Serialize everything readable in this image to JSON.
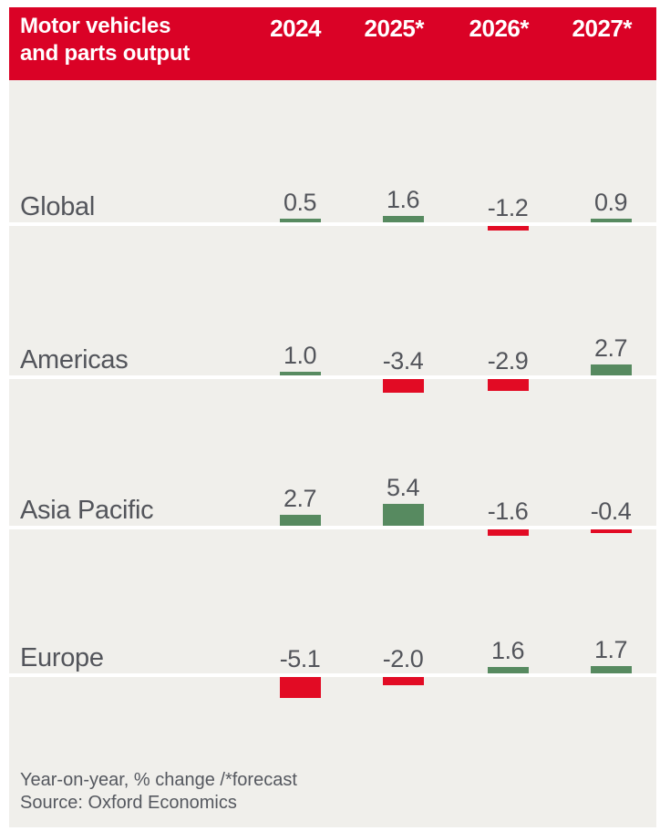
{
  "header": {
    "title_line1": "Motor vehicles",
    "title_line2": "and parts output",
    "columns": [
      "2024",
      "2025*",
      "2026*",
      "2027*"
    ]
  },
  "chart_data": {
    "type": "bar",
    "title": "Motor vehicles and parts output",
    "categories": [
      "2024",
      "2025*",
      "2026*",
      "2027*"
    ],
    "series": [
      {
        "name": "Global",
        "values": [
          0.5,
          1.6,
          -1.2,
          0.9
        ]
      },
      {
        "name": "Americas",
        "values": [
          1.0,
          -3.4,
          -2.9,
          2.7
        ]
      },
      {
        "name": "Asia Pacific",
        "values": [
          2.7,
          5.4,
          -1.6,
          -0.4
        ]
      },
      {
        "name": "Europe",
        "values": [
          -5.1,
          -2.0,
          1.6,
          1.7
        ]
      }
    ],
    "unit": "Year-on-year, % change",
    "forecast_note": "* = forecast",
    "legend_position": "none",
    "grid": false,
    "positive_color": "#578a60",
    "negative_color": "#e20b24"
  },
  "footer": {
    "note": "Year-on-year, % change /*forecast",
    "source": "Source: Oxford Economics"
  },
  "colors": {
    "header_bg": "#da0226",
    "card_bg": "#f0efeb",
    "text": "#53555b",
    "footer_text": "#55585f",
    "baseline": "#ffffff",
    "header_text": "#ffffff"
  }
}
